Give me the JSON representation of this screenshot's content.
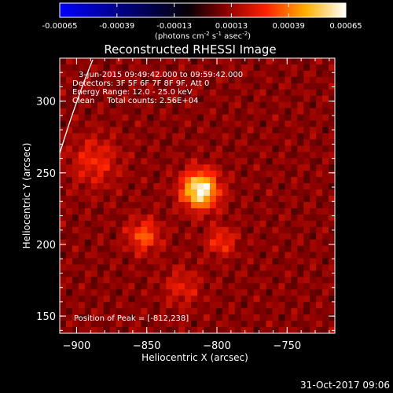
{
  "chart_data": {
    "type": "heatmap",
    "title": "Reconstructed RHESSI Image",
    "colorbar": {
      "ticks": [
        "-0.00065",
        "-0.00039",
        "-0.00013",
        "0.00013",
        "0.00039",
        "0.00065"
      ],
      "range": [
        -0.00065,
        0.00065
      ],
      "unit_label": "(photons cm",
      "unit_sup1": "-2",
      "unit_mid": " s",
      "unit_sup2": "-1",
      "unit_mid2": " asec",
      "unit_sup3": "-2",
      "unit_end": ")"
    },
    "xlabel": "Heliocentric X (arcsec)",
    "ylabel": "Heliocentric Y (arcsec)",
    "xlim": [
      -912,
      -716
    ],
    "ylim": [
      138,
      330
    ],
    "xticks": [
      -900,
      -850,
      -800,
      -750
    ],
    "yticks": [
      150,
      200,
      250,
      300
    ],
    "xtick_labels": [
      "−900",
      "−850",
      "−800",
      "−750"
    ],
    "ytick_labels": [
      "150",
      "200",
      "250",
      "300"
    ],
    "annotations": [
      "3-Jun-2015 09:49:42.000 to 09:59:42.000",
      "Detectors: 3F 5F 6F 7F 8F 9F, Att 0",
      "Energy Range: 12.0 - 25.0 keV",
      "Clean     Total counts: 2.56E+04"
    ],
    "peak_label": "Position of Peak = [-812,238]",
    "peak": [
      -812,
      238
    ],
    "colormap": [
      "#0000ff",
      "#000050",
      "#000000",
      "#8a0000",
      "#ff2000",
      "#ffb000",
      "#ffffff"
    ]
  },
  "footer": {
    "timestamp": "31-Oct-2017 09:06"
  }
}
